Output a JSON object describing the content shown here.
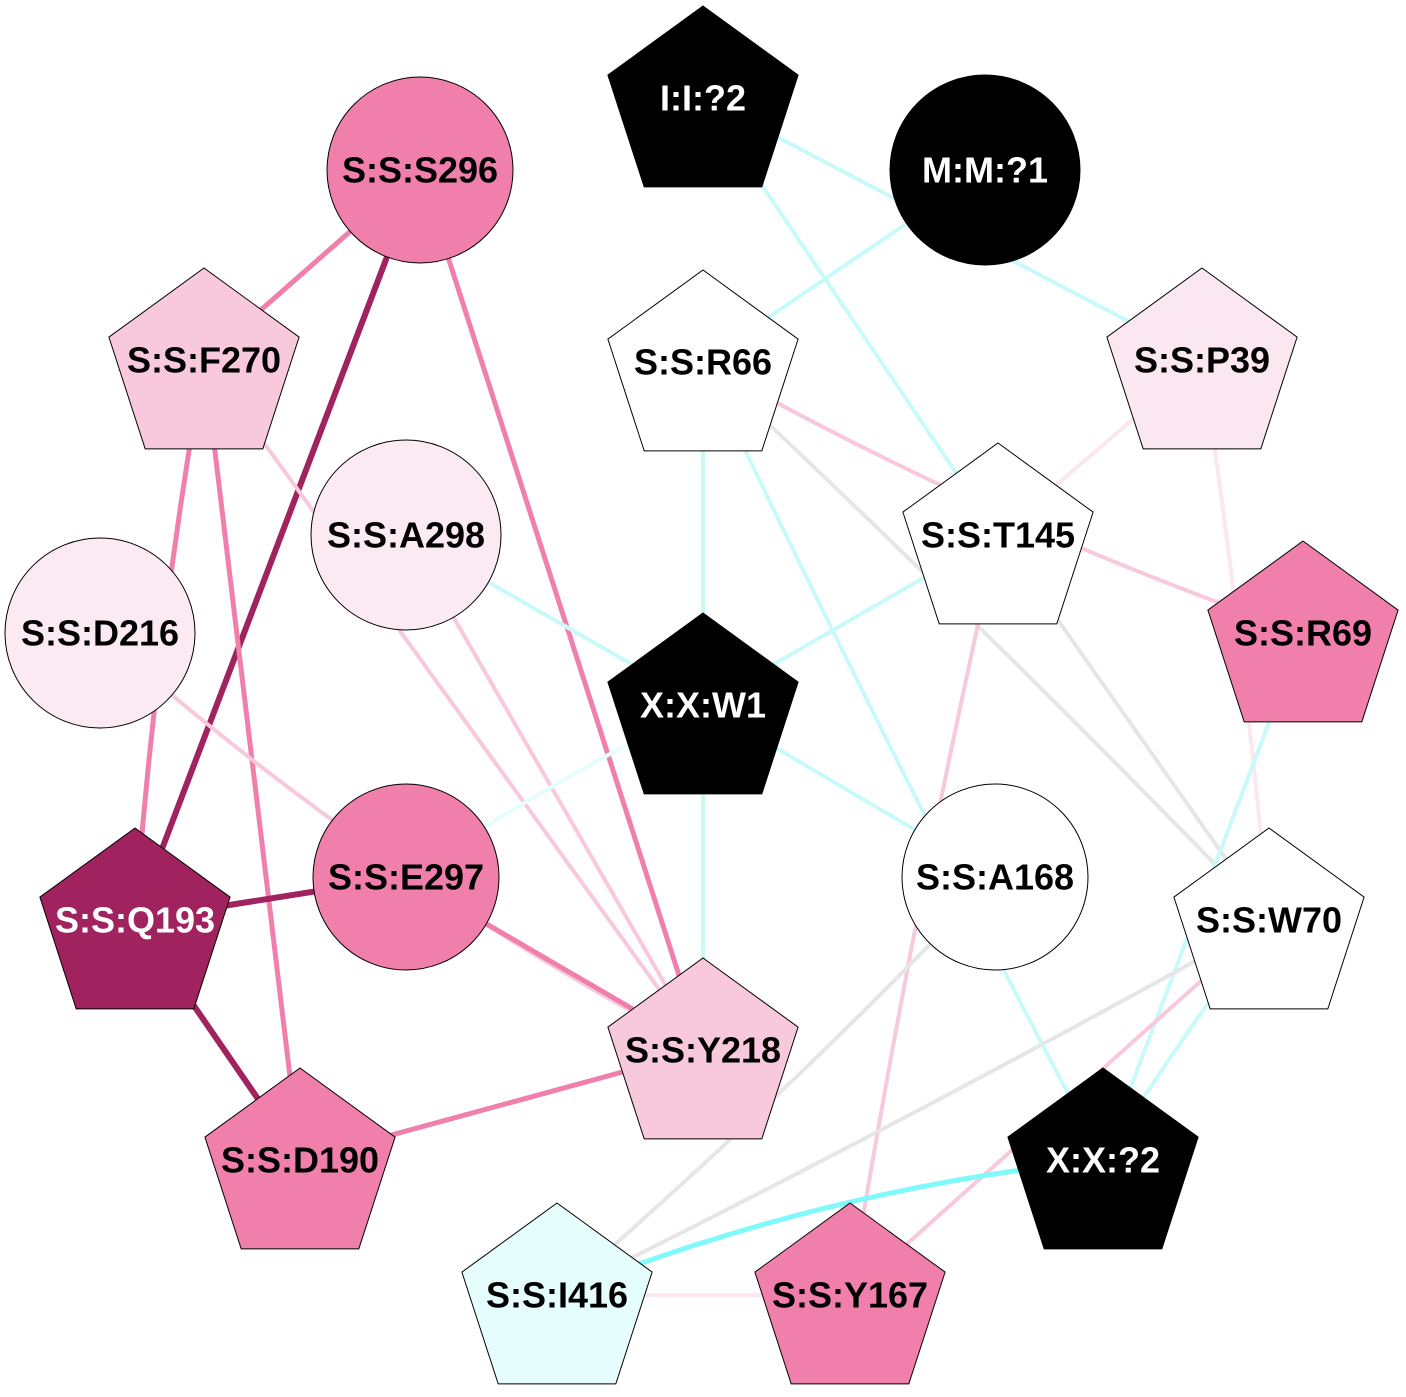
{
  "nodes": [
    {
      "id": "I:I:?2",
      "label": "I:I:?2",
      "shape": "pentagon",
      "fill": "#000000",
      "text_color": "#ffffff"
    },
    {
      "id": "M:M:?1",
      "label": "M:M:?1",
      "shape": "circle",
      "fill": "#000000",
      "text_color": "#ffffff"
    },
    {
      "id": "S:S:S296",
      "label": "S:S:S296",
      "shape": "circle",
      "fill": "#f07fac",
      "text_color": "#000000"
    },
    {
      "id": "S:S:F270",
      "label": "S:S:F270",
      "shape": "pentagon",
      "fill": "#f8c8dc",
      "text_color": "#000000"
    },
    {
      "id": "S:S:R66",
      "label": "S:S:R66",
      "shape": "pentagon",
      "fill": "#ffffff",
      "text_color": "#000000"
    },
    {
      "id": "S:S:P39",
      "label": "S:S:P39",
      "shape": "pentagon",
      "fill": "#fbe7ef",
      "text_color": "#000000"
    },
    {
      "id": "S:S:A298",
      "label": "S:S:A298",
      "shape": "circle",
      "fill": "#fbeaf1",
      "text_color": "#000000"
    },
    {
      "id": "S:S:T145",
      "label": "S:S:T145",
      "shape": "pentagon",
      "fill": "#ffffff",
      "text_color": "#000000"
    },
    {
      "id": "S:S:D216",
      "label": "S:S:D216",
      "shape": "circle",
      "fill": "#fbeaf1",
      "text_color": "#000000"
    },
    {
      "id": "S:S:R69",
      "label": "S:S:R69",
      "shape": "pentagon",
      "fill": "#f07fac",
      "text_color": "#000000"
    },
    {
      "id": "X:X:W1",
      "label": "X:X:W1",
      "shape": "pentagon",
      "fill": "#000000",
      "text_color": "#ffffff"
    },
    {
      "id": "S:S:E297",
      "label": "S:S:E297",
      "shape": "circle",
      "fill": "#f07fac",
      "text_color": "#000000"
    },
    {
      "id": "S:S:A168",
      "label": "S:S:A168",
      "shape": "circle",
      "fill": "#ffffff",
      "text_color": "#000000"
    },
    {
      "id": "S:S:Q193",
      "label": "S:S:Q193",
      "shape": "pentagon",
      "fill": "#a0225e",
      "text_color": "#ffffff"
    },
    {
      "id": "S:S:W70",
      "label": "S:S:W70",
      "shape": "pentagon",
      "fill": "#ffffff",
      "text_color": "#000000"
    },
    {
      "id": "S:S:Y218",
      "label": "S:S:Y218",
      "shape": "pentagon",
      "fill": "#f8c8dc",
      "text_color": "#000000"
    },
    {
      "id": "S:S:D190",
      "label": "S:S:D190",
      "shape": "pentagon",
      "fill": "#f07fac",
      "text_color": "#000000"
    },
    {
      "id": "X:X:?2",
      "label": "X:X:?2",
      "shape": "pentagon",
      "fill": "#000000",
      "text_color": "#ffffff"
    },
    {
      "id": "S:S:I416",
      "label": "S:S:I416",
      "shape": "pentagon",
      "fill": "#e6fdfd",
      "text_color": "#000000"
    },
    {
      "id": "S:S:Y167",
      "label": "S:S:Y167",
      "shape": "pentagon",
      "fill": "#f07fac",
      "text_color": "#000000"
    }
  ],
  "edges": [
    {
      "source": "S:S:S296",
      "target": "S:S:F270",
      "color": "#f07fac",
      "weight": 5
    },
    {
      "source": "S:S:S296",
      "target": "S:S:Q193",
      "color": "#a0225e",
      "weight": 6
    },
    {
      "source": "S:S:S296",
      "target": "S:S:Y218",
      "color": "#f07fac",
      "weight": 5
    },
    {
      "source": "S:S:F270",
      "target": "S:S:Q193",
      "color": "#f07fac",
      "weight": 5
    },
    {
      "source": "S:S:F270",
      "target": "S:S:D190",
      "color": "#f07fac",
      "weight": 5
    },
    {
      "source": "S:S:F270",
      "target": "S:S:Y218",
      "color": "#f8c8dc",
      "weight": 4
    },
    {
      "source": "S:S:D216",
      "target": "S:S:Y218",
      "color": "#f8c8dc",
      "weight": 4
    },
    {
      "source": "S:S:A298",
      "target": "S:S:Y218",
      "color": "#f8c8dc",
      "weight": 4
    },
    {
      "source": "S:S:A298",
      "target": "X:X:W1",
      "color": "#c8fafa",
      "weight": 4
    },
    {
      "source": "S:S:E297",
      "target": "S:S:Q193",
      "color": "#a0225e",
      "weight": 6
    },
    {
      "source": "S:S:E297",
      "target": "S:S:Y218",
      "color": "#f07fac",
      "weight": 5
    },
    {
      "source": "S:S:Q193",
      "target": "S:S:D190",
      "color": "#a0225e",
      "weight": 6
    },
    {
      "source": "S:S:D190",
      "target": "S:S:Y218",
      "color": "#f07fac",
      "weight": 5
    },
    {
      "source": "I:I:?2",
      "target": "S:S:P39",
      "color": "#c8fafa",
      "weight": 4
    },
    {
      "source": "I:I:?2",
      "target": "S:S:T145",
      "color": "#c8fafa",
      "weight": 4
    },
    {
      "source": "M:M:?1",
      "target": "S:S:R66",
      "color": "#c8fafa",
      "weight": 4
    },
    {
      "source": "S:S:R66",
      "target": "S:S:R69",
      "color": "#f8c8dc",
      "weight": 4
    },
    {
      "source": "S:S:R66",
      "target": "X:X:W1",
      "color": "#c8fafa",
      "weight": 4
    },
    {
      "source": "S:S:R66",
      "target": "S:S:W70",
      "color": "#e6e6e6",
      "weight": 4
    },
    {
      "source": "S:S:R66",
      "target": "X:X:?2",
      "color": "#c8fafa",
      "weight": 4
    },
    {
      "source": "S:S:P39",
      "target": "S:S:T145",
      "color": "#fbe7ef",
      "weight": 4
    },
    {
      "source": "S:S:P39",
      "target": "S:S:W70",
      "color": "#fbe7ef",
      "weight": 4
    },
    {
      "source": "S:S:T145",
      "target": "X:X:W1",
      "color": "#c8fafa",
      "weight": 4
    },
    {
      "source": "S:S:T145",
      "target": "S:S:W70",
      "color": "#e6e6e6",
      "weight": 4
    },
    {
      "source": "S:S:T145",
      "target": "S:S:Y167",
      "color": "#f8c8dc",
      "weight": 4
    },
    {
      "source": "S:S:R69",
      "target": "X:X:?2",
      "color": "#c8fafa",
      "weight": 4
    },
    {
      "source": "X:X:W1",
      "target": "S:S:Y218",
      "color": "#c8fafa",
      "weight": 4
    },
    {
      "source": "X:X:W1",
      "target": "S:S:A168",
      "color": "#c8fafa",
      "weight": 4
    },
    {
      "source": "X:X:W1",
      "target": "S:S:E297",
      "color": "#e6fdfd",
      "weight": 4
    },
    {
      "source": "S:S:A168",
      "target": "S:S:I416",
      "color": "#e6e6e6",
      "weight": 4
    },
    {
      "source": "S:S:W70",
      "target": "S:S:I416",
      "color": "#e6e6e6",
      "weight": 4
    },
    {
      "source": "S:S:W70",
      "target": "S:S:Y167",
      "color": "#f8c8dc",
      "weight": 4
    },
    {
      "source": "S:S:W70",
      "target": "X:X:?2",
      "color": "#c8fafa",
      "weight": 4
    },
    {
      "source": "X:X:?2",
      "target": "S:S:I416",
      "color": "#7ff9f9",
      "weight": 5
    },
    {
      "source": "S:S:I416",
      "target": "S:S:Y167",
      "color": "#fbe7ef",
      "weight": 4
    }
  ]
}
